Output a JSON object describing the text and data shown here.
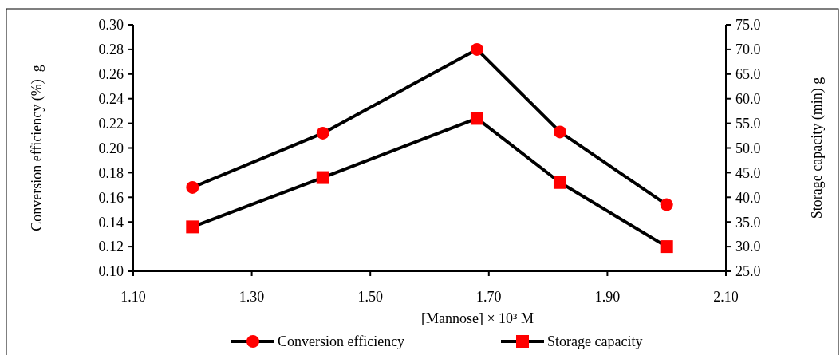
{
  "chart_data": {
    "type": "line",
    "xlabel": "[Mannose] × 10³ M",
    "ylabel": "Conversion efficiency (%)  g",
    "y2label": "Storage capacity (min) g",
    "x": [
      1.2,
      1.42,
      1.68,
      1.82,
      2.0
    ],
    "xlim": [
      1.1,
      2.1
    ],
    "xticks": [
      {
        "value": 1.1,
        "label": "1.10"
      },
      {
        "value": 1.3,
        "label": "1.30"
      },
      {
        "value": 1.5,
        "label": "1.50"
      },
      {
        "value": 1.7,
        "label": "1.70"
      },
      {
        "value": 1.9,
        "label": "1.90"
      },
      {
        "value": 2.1,
        "label": "2.10"
      }
    ],
    "ylim": [
      0.1,
      0.3
    ],
    "yticks": [
      {
        "value": 0.1,
        "label": "0.10"
      },
      {
        "value": 0.12,
        "label": "0.12"
      },
      {
        "value": 0.14,
        "label": "0.14"
      },
      {
        "value": 0.16,
        "label": "0.16"
      },
      {
        "value": 0.18,
        "label": "0.18"
      },
      {
        "value": 0.2,
        "label": "0.20"
      },
      {
        "value": 0.22,
        "label": "0.22"
      },
      {
        "value": 0.24,
        "label": "0.24"
      },
      {
        "value": 0.26,
        "label": "0.26"
      },
      {
        "value": 0.28,
        "label": "0.28"
      },
      {
        "value": 0.3,
        "label": "0.30"
      }
    ],
    "y2lim": [
      25,
      75
    ],
    "y2ticks": [
      {
        "value": 25,
        "label": "25.0"
      },
      {
        "value": 30,
        "label": "30.0"
      },
      {
        "value": 35,
        "label": "35.0"
      },
      {
        "value": 40,
        "label": "40.0"
      },
      {
        "value": 45,
        "label": "45.0"
      },
      {
        "value": 50,
        "label": "50.0"
      },
      {
        "value": 55,
        "label": "55.0"
      },
      {
        "value": 60,
        "label": "60.0"
      },
      {
        "value": 65,
        "label": "65.0"
      },
      {
        "value": 70,
        "label": "70.0"
      },
      {
        "value": 75,
        "label": "75.0"
      }
    ],
    "grid": false,
    "legend": "bottom",
    "line_style": "solid",
    "series": [
      {
        "name": "Conversion efficiency",
        "color": "#ff0000",
        "marker": "circle",
        "values": [
          0.168,
          0.212,
          0.28,
          0.213,
          0.154
        ]
      },
      {
        "name": "Storage capacity",
        "color": "#ff0000",
        "marker": "square",
        "axis": "y2",
        "values": [
          34,
          44,
          56,
          43,
          30
        ]
      }
    ]
  }
}
